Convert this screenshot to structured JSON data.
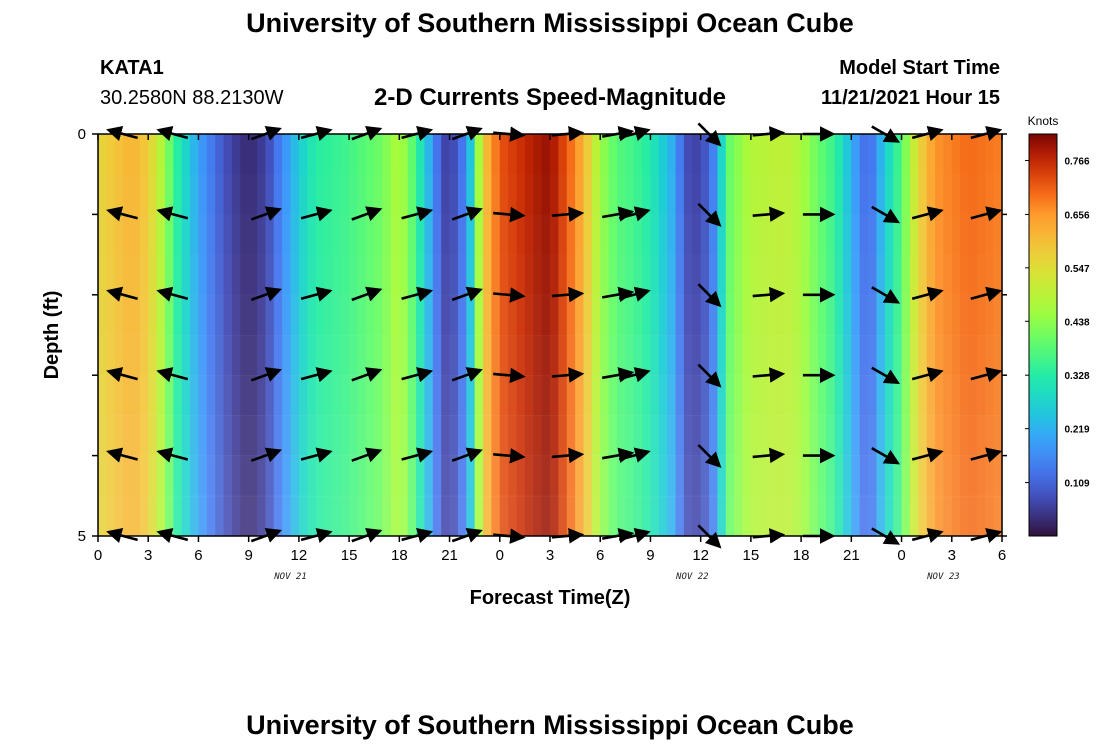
{
  "header": {
    "title": "University of Southern Mississippi Ocean Cube",
    "station": "KATA1",
    "coords": "30.2580N  88.2130W",
    "subtitle": "2-D Currents Speed-Magnitude",
    "model_start_label": "Model Start Time",
    "model_start_value": "11/21/2021 Hour 15",
    "footer_title": "University of Southern Mississippi Ocean Cube"
  },
  "chart_data": {
    "type": "heatmap",
    "title": "2-D Currents Speed-Magnitude",
    "xlabel": "Forecast Time(Z)",
    "ylabel": "Depth (ft)",
    "x_hours": [
      0,
      3,
      6,
      9,
      12,
      15,
      18,
      21,
      24,
      27,
      30,
      33,
      36,
      39,
      42,
      45,
      48,
      51,
      54
    ],
    "x_tick_labels": [
      "0",
      "3",
      "6",
      "9",
      "12",
      "15",
      "18",
      "21",
      "0",
      "3",
      "6",
      "9",
      "12",
      "15",
      "18",
      "21",
      "0",
      "3",
      "6"
    ],
    "date_labels": [
      {
        "hour": 11.5,
        "label": "NOV 21"
      },
      {
        "hour": 35.5,
        "label": "NOV 22"
      },
      {
        "hour": 50.5,
        "label": "NOV 23"
      }
    ],
    "y_tick_labels": [
      "0",
      "5"
    ],
    "ylim": [
      0,
      5
    ],
    "colorbar": {
      "unit": "Knots",
      "min": 0.0,
      "max": 0.82,
      "tick_labels": [
        "0.766",
        "0.656",
        "0.547",
        "0.438",
        "0.328",
        "0.219",
        "0.109"
      ],
      "tick_values": [
        0.766,
        0.656,
        0.547,
        0.438,
        0.328,
        0.219,
        0.109
      ]
    },
    "speed_profile": {
      "hours": [
        0,
        2,
        3,
        4,
        4.5,
        5,
        6,
        7,
        8,
        9,
        10,
        11,
        12,
        13,
        15,
        17,
        18,
        19,
        20,
        20.5,
        21,
        22,
        22.5,
        23,
        24,
        26,
        27,
        28,
        29,
        30,
        31,
        32,
        33,
        34.5,
        35,
        36,
        37,
        37.5,
        38,
        39,
        41,
        42,
        43,
        44,
        45,
        46,
        47,
        48,
        49,
        50,
        52,
        54
      ],
      "values": [
        0.56,
        0.62,
        0.58,
        0.45,
        0.36,
        0.3,
        0.2,
        0.12,
        0.06,
        0.03,
        0.06,
        0.16,
        0.26,
        0.33,
        0.36,
        0.41,
        0.48,
        0.36,
        0.18,
        0.08,
        0.05,
        0.16,
        0.34,
        0.58,
        0.72,
        0.78,
        0.8,
        0.72,
        0.62,
        0.45,
        0.38,
        0.36,
        0.32,
        0.2,
        0.08,
        0.06,
        0.18,
        0.38,
        0.42,
        0.48,
        0.5,
        0.47,
        0.4,
        0.35,
        0.22,
        0.1,
        0.26,
        0.38,
        0.56,
        0.66,
        0.7,
        0.68
      ]
    },
    "current_vectors": {
      "hours": [
        1.5,
        4.5,
        10,
        13,
        16,
        19,
        22,
        24.5,
        28,
        31,
        32,
        36.5,
        40,
        43,
        47,
        49.5,
        53
      ],
      "depths": [
        0,
        1,
        2,
        3,
        4,
        5
      ],
      "direction_deg": [
        165,
        165,
        20,
        15,
        20,
        15,
        20,
        -5,
        5,
        10,
        15,
        -45,
        5,
        0,
        -30,
        15,
        15
      ],
      "magnitude": [
        0.56,
        0.36,
        0.05,
        0.33,
        0.41,
        0.3,
        0.1,
        0.72,
        0.8,
        0.45,
        0.36,
        0.07,
        0.42,
        0.47,
        0.1,
        0.62,
        0.7
      ]
    }
  }
}
